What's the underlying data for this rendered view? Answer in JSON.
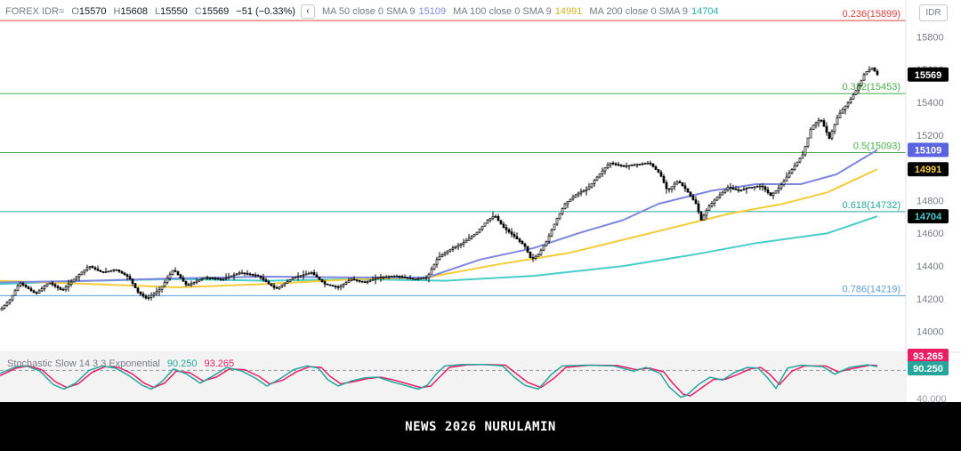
{
  "legend": {
    "symbol": "FOREX IDR=",
    "o_label": "O",
    "o": "15570",
    "h_label": "H",
    "h": "15608",
    "l_label": "L",
    "l": "15550",
    "c_label": "C",
    "c": "15569",
    "change": "−51 (−0.33%)",
    "collapse_icon": "‹",
    "ma50_label": "MA 50 close 0 SMA 9",
    "ma50_value": "15109",
    "ma100_label": "MA 100 close 0 SMA 9",
    "ma100_value": "14991",
    "ma200_label": "MA 200 close 0 SMA 9",
    "ma200_value": "14704"
  },
  "currency_button": "IDR",
  "stoch": {
    "label": "Stochastic Slow 14 3 3 Exponential",
    "k_value": "90.250",
    "d_value": "93.265"
  },
  "banner": "NEWS 2026 NURULAMIN",
  "colors": {
    "up": "#ffffff",
    "down": "#000000",
    "ma50": "#7e87de",
    "ma100": "#f2cd39",
    "ma200": "#48cdc8",
    "fib_0236": "#e0413a",
    "fib_0382": "#4caf50",
    "fib_05": "#4caf50",
    "fib_0618": "#26a69a",
    "fib_0786": "#5b9fdb",
    "stoch_k": "#26a69a",
    "stoch_d": "#e91e63",
    "last_price_bg": "#000000"
  },
  "chart_data": {
    "type": "line",
    "chart_kind": "candlestick",
    "ylim": [
      13900,
      15880
    ],
    "yticks": [
      14000,
      14200,
      14400,
      14600,
      14800,
      15000,
      15200,
      15400,
      15600,
      15800
    ],
    "tick_labels": [
      "14000",
      "14200",
      "14400",
      "14600",
      "14800",
      "15000",
      "15200",
      "15400",
      "15600",
      "15800"
    ],
    "price_anchors": [
      [
        0,
        14130
      ],
      [
        12,
        14200
      ],
      [
        22,
        14300
      ],
      [
        40,
        14230
      ],
      [
        55,
        14300
      ],
      [
        70,
        14250
      ],
      [
        85,
        14330
      ],
      [
        100,
        14400
      ],
      [
        115,
        14360
      ],
      [
        130,
        14380
      ],
      [
        145,
        14330
      ],
      [
        155,
        14240
      ],
      [
        165,
        14200
      ],
      [
        180,
        14260
      ],
      [
        195,
        14380
      ],
      [
        210,
        14280
      ],
      [
        230,
        14330
      ],
      [
        250,
        14320
      ],
      [
        270,
        14360
      ],
      [
        290,
        14340
      ],
      [
        310,
        14260
      ],
      [
        330,
        14330
      ],
      [
        350,
        14360
      ],
      [
        365,
        14290
      ],
      [
        380,
        14270
      ],
      [
        395,
        14320
      ],
      [
        410,
        14300
      ],
      [
        425,
        14330
      ],
      [
        445,
        14340
      ],
      [
        465,
        14320
      ],
      [
        480,
        14330
      ],
      [
        492,
        14450
      ],
      [
        505,
        14500
      ],
      [
        520,
        14540
      ],
      [
        535,
        14600
      ],
      [
        548,
        14680
      ],
      [
        556,
        14710
      ],
      [
        565,
        14640
      ],
      [
        578,
        14580
      ],
      [
        590,
        14520
      ],
      [
        597,
        14440
      ],
      [
        605,
        14470
      ],
      [
        615,
        14560
      ],
      [
        625,
        14680
      ],
      [
        635,
        14780
      ],
      [
        648,
        14840
      ],
      [
        660,
        14870
      ],
      [
        672,
        14950
      ],
      [
        685,
        15030
      ],
      [
        700,
        15010
      ],
      [
        715,
        15020
      ],
      [
        730,
        15030
      ],
      [
        742,
        14960
      ],
      [
        750,
        14860
      ],
      [
        762,
        14920
      ],
      [
        772,
        14860
      ],
      [
        782,
        14780
      ],
      [
        788,
        14680
      ],
      [
        796,
        14760
      ],
      [
        806,
        14820
      ],
      [
        818,
        14880
      ],
      [
        830,
        14860
      ],
      [
        842,
        14880
      ],
      [
        856,
        14890
      ],
      [
        866,
        14830
      ],
      [
        876,
        14880
      ],
      [
        890,
        14990
      ],
      [
        902,
        15080
      ],
      [
        912,
        15250
      ],
      [
        922,
        15300
      ],
      [
        932,
        15180
      ],
      [
        942,
        15320
      ],
      [
        955,
        15410
      ],
      [
        965,
        15500
      ],
      [
        972,
        15580
      ],
      [
        980,
        15610
      ],
      [
        986,
        15569
      ]
    ],
    "ma50": [
      [
        0,
        14300
      ],
      [
        100,
        14310
      ],
      [
        200,
        14325
      ],
      [
        300,
        14335
      ],
      [
        400,
        14330
      ],
      [
        480,
        14330
      ],
      [
        540,
        14440
      ],
      [
        600,
        14510
      ],
      [
        650,
        14600
      ],
      [
        700,
        14680
      ],
      [
        740,
        14780
      ],
      [
        800,
        14860
      ],
      [
        850,
        14900
      ],
      [
        900,
        14900
      ],
      [
        940,
        14960
      ],
      [
        986,
        15109
      ]
    ],
    "ma100": [
      [
        0,
        14310
      ],
      [
        100,
        14290
      ],
      [
        200,
        14270
      ],
      [
        300,
        14290
      ],
      [
        400,
        14320
      ],
      [
        480,
        14330
      ],
      [
        560,
        14410
      ],
      [
        640,
        14480
      ],
      [
        700,
        14560
      ],
      [
        760,
        14640
      ],
      [
        820,
        14720
      ],
      [
        880,
        14780
      ],
      [
        930,
        14850
      ],
      [
        986,
        14991
      ]
    ],
    "ma200": [
      [
        0,
        14290
      ],
      [
        100,
        14310
      ],
      [
        200,
        14320
      ],
      [
        300,
        14310
      ],
      [
        400,
        14320
      ],
      [
        500,
        14310
      ],
      [
        600,
        14340
      ],
      [
        700,
        14400
      ],
      [
        780,
        14470
      ],
      [
        850,
        14540
      ],
      [
        930,
        14600
      ],
      [
        986,
        14704
      ]
    ],
    "fib_levels": [
      {
        "label": "0.236(15899)",
        "value": 15899,
        "color_key": "fib_0236"
      },
      {
        "label": "0.382(15453)",
        "value": 15453,
        "color_key": "fib_0382"
      },
      {
        "label": "0.5(15093)",
        "value": 15093,
        "color_key": "fib_05"
      },
      {
        "label": "0.618(14732)",
        "value": 14732,
        "color_key": "fib_0618"
      },
      {
        "label": "0.786(14219)",
        "value": 14219,
        "color_key": "fib_0786"
      }
    ],
    "price_badges": [
      {
        "value": "15569",
        "price": 15569,
        "bg": "#000000",
        "fg": "#ffffff"
      },
      {
        "value": "15109",
        "price": 15109,
        "bg": "#5b63e0",
        "fg": "#ffffff"
      },
      {
        "value": "14991",
        "price": 14991,
        "bg": "#000000",
        "fg": "#f2cd39"
      },
      {
        "value": "14704",
        "price": 14704,
        "bg": "#000000",
        "fg": "#48cdc8"
      }
    ],
    "stoch_ylim": [
      0,
      100
    ],
    "stoch_tick_labels": [
      "40.000"
    ],
    "stoch_k_anchors": [
      [
        0,
        72
      ],
      [
        18,
        90
      ],
      [
        30,
        92
      ],
      [
        45,
        78
      ],
      [
        60,
        42
      ],
      [
        72,
        30
      ],
      [
        85,
        46
      ],
      [
        100,
        80
      ],
      [
        115,
        92
      ],
      [
        130,
        86
      ],
      [
        145,
        66
      ],
      [
        160,
        40
      ],
      [
        170,
        30
      ],
      [
        182,
        50
      ],
      [
        195,
        84
      ],
      [
        210,
        70
      ],
      [
        225,
        46
      ],
      [
        240,
        66
      ],
      [
        255,
        88
      ],
      [
        272,
        78
      ],
      [
        288,
        58
      ],
      [
        300,
        38
      ],
      [
        315,
        58
      ],
      [
        330,
        82
      ],
      [
        345,
        92
      ],
      [
        358,
        86
      ],
      [
        368,
        56
      ],
      [
        380,
        38
      ],
      [
        395,
        52
      ],
      [
        410,
        60
      ],
      [
        425,
        62
      ],
      [
        440,
        50
      ],
      [
        455,
        40
      ],
      [
        470,
        30
      ],
      [
        480,
        40
      ],
      [
        490,
        70
      ],
      [
        500,
        92
      ],
      [
        520,
        96
      ],
      [
        545,
        96
      ],
      [
        565,
        92
      ],
      [
        578,
        62
      ],
      [
        590,
        40
      ],
      [
        605,
        30
      ],
      [
        620,
        70
      ],
      [
        632,
        92
      ],
      [
        660,
        94
      ],
      [
        690,
        92
      ],
      [
        712,
        78
      ],
      [
        726,
        88
      ],
      [
        742,
        72
      ],
      [
        752,
        36
      ],
      [
        765,
        8
      ],
      [
        772,
        14
      ],
      [
        786,
        44
      ],
      [
        798,
        62
      ],
      [
        812,
        54
      ],
      [
        825,
        74
      ],
      [
        840,
        88
      ],
      [
        852,
        86
      ],
      [
        862,
        62
      ],
      [
        872,
        32
      ],
      [
        885,
        86
      ],
      [
        900,
        94
      ],
      [
        925,
        90
      ],
      [
        938,
        70
      ],
      [
        955,
        88
      ],
      [
        975,
        95
      ],
      [
        986,
        90.25
      ]
    ],
    "stoch_d_anchors": [
      [
        0,
        66
      ],
      [
        18,
        86
      ],
      [
        32,
        92
      ],
      [
        47,
        82
      ],
      [
        62,
        50
      ],
      [
        75,
        34
      ],
      [
        88,
        44
      ],
      [
        103,
        74
      ],
      [
        118,
        90
      ],
      [
        133,
        88
      ],
      [
        148,
        72
      ],
      [
        162,
        46
      ],
      [
        173,
        34
      ],
      [
        185,
        46
      ],
      [
        198,
        78
      ],
      [
        213,
        74
      ],
      [
        228,
        52
      ],
      [
        243,
        62
      ],
      [
        258,
        84
      ],
      [
        275,
        82
      ],
      [
        291,
        64
      ],
      [
        303,
        44
      ],
      [
        318,
        54
      ],
      [
        333,
        76
      ],
      [
        348,
        90
      ],
      [
        361,
        88
      ],
      [
        371,
        64
      ],
      [
        383,
        44
      ],
      [
        398,
        50
      ],
      [
        413,
        58
      ],
      [
        428,
        62
      ],
      [
        443,
        54
      ],
      [
        458,
        44
      ],
      [
        473,
        34
      ],
      [
        484,
        38
      ],
      [
        494,
        62
      ],
      [
        505,
        88
      ],
      [
        525,
        95
      ],
      [
        548,
        96
      ],
      [
        568,
        94
      ],
      [
        581,
        70
      ],
      [
        593,
        48
      ],
      [
        608,
        34
      ],
      [
        623,
        60
      ],
      [
        636,
        88
      ],
      [
        664,
        94
      ],
      [
        694,
        93
      ],
      [
        715,
        82
      ],
      [
        730,
        86
      ],
      [
        746,
        76
      ],
      [
        756,
        46
      ],
      [
        768,
        16
      ],
      [
        776,
        12
      ],
      [
        790,
        36
      ],
      [
        802,
        56
      ],
      [
        815,
        56
      ],
      [
        828,
        68
      ],
      [
        843,
        84
      ],
      [
        855,
        88
      ],
      [
        865,
        70
      ],
      [
        876,
        42
      ],
      [
        890,
        78
      ],
      [
        904,
        92
      ],
      [
        928,
        92
      ],
      [
        942,
        76
      ],
      [
        960,
        86
      ],
      [
        978,
        94
      ],
      [
        986,
        93.265
      ]
    ]
  }
}
